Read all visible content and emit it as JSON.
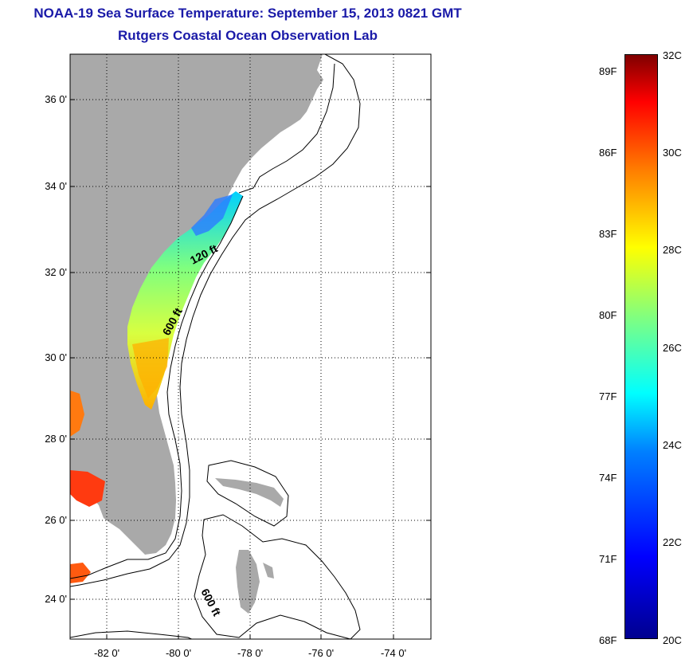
{
  "title": "NOAA-19 Sea Surface Temperature:  September 15, 2013 0821 GMT",
  "subtitle": "Rutgers Coastal Ocean Observation Lab",
  "map": {
    "lat_ticks": [
      "36 0'",
      "34 0'",
      "32 0'",
      "30 0'",
      "28 0'",
      "26 0'",
      "24 0'"
    ],
    "lon_ticks": [
      "-82 0'",
      "-80 0'",
      "-78 0'",
      "-76 0'",
      "-74 0'"
    ],
    "contour_labels": [
      "120 ft",
      "600 ft",
      "600 ft"
    ],
    "colors": {
      "land": "#a9a9a9",
      "ocean": "#ffffff",
      "title": "#1a1aa8"
    }
  },
  "colorbar": {
    "fahrenheit": [
      "89F",
      "86F",
      "83F",
      "80F",
      "77F",
      "74F",
      "71F",
      "68F"
    ],
    "celsius": [
      "32C",
      "30C",
      "28C",
      "26C",
      "24C",
      "22C",
      "20C"
    ],
    "range_c": [
      20,
      32
    ]
  }
}
